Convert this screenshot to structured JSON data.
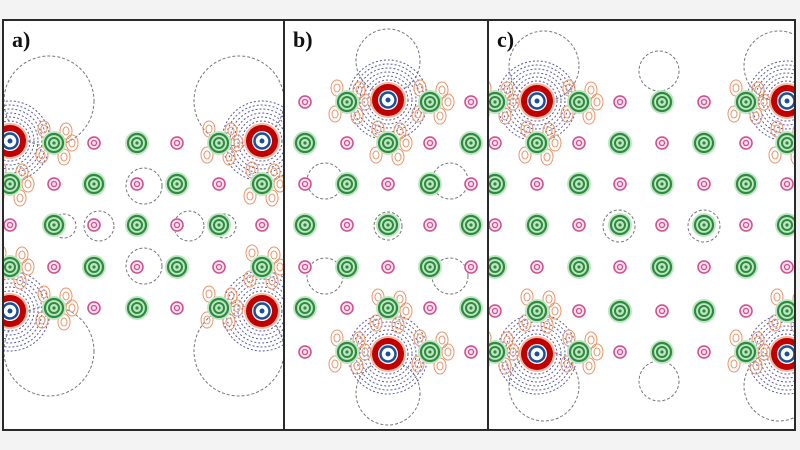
{
  "figure": {
    "description": "Three-panel contour map of electron density difference around atoms",
    "panels": [
      {
        "id": "a",
        "label": "a)"
      },
      {
        "id": "b",
        "label": "b)"
      },
      {
        "id": "c",
        "label": "c)"
      }
    ],
    "legend_colors": {
      "heavy_atom_outer": "#c00000",
      "heavy_atom_core": "#1a4f9c",
      "green_atom": "#2e8b3e",
      "green_halo": "#bfe6c4",
      "pink_atom": "#d0508f",
      "positive_contour": "#e8956a",
      "negative_contour": "#5a5aa8",
      "zero_contour": "#777777"
    },
    "atom_types": [
      "heavy-atom",
      "green-atom",
      "pink-atom"
    ]
  }
}
